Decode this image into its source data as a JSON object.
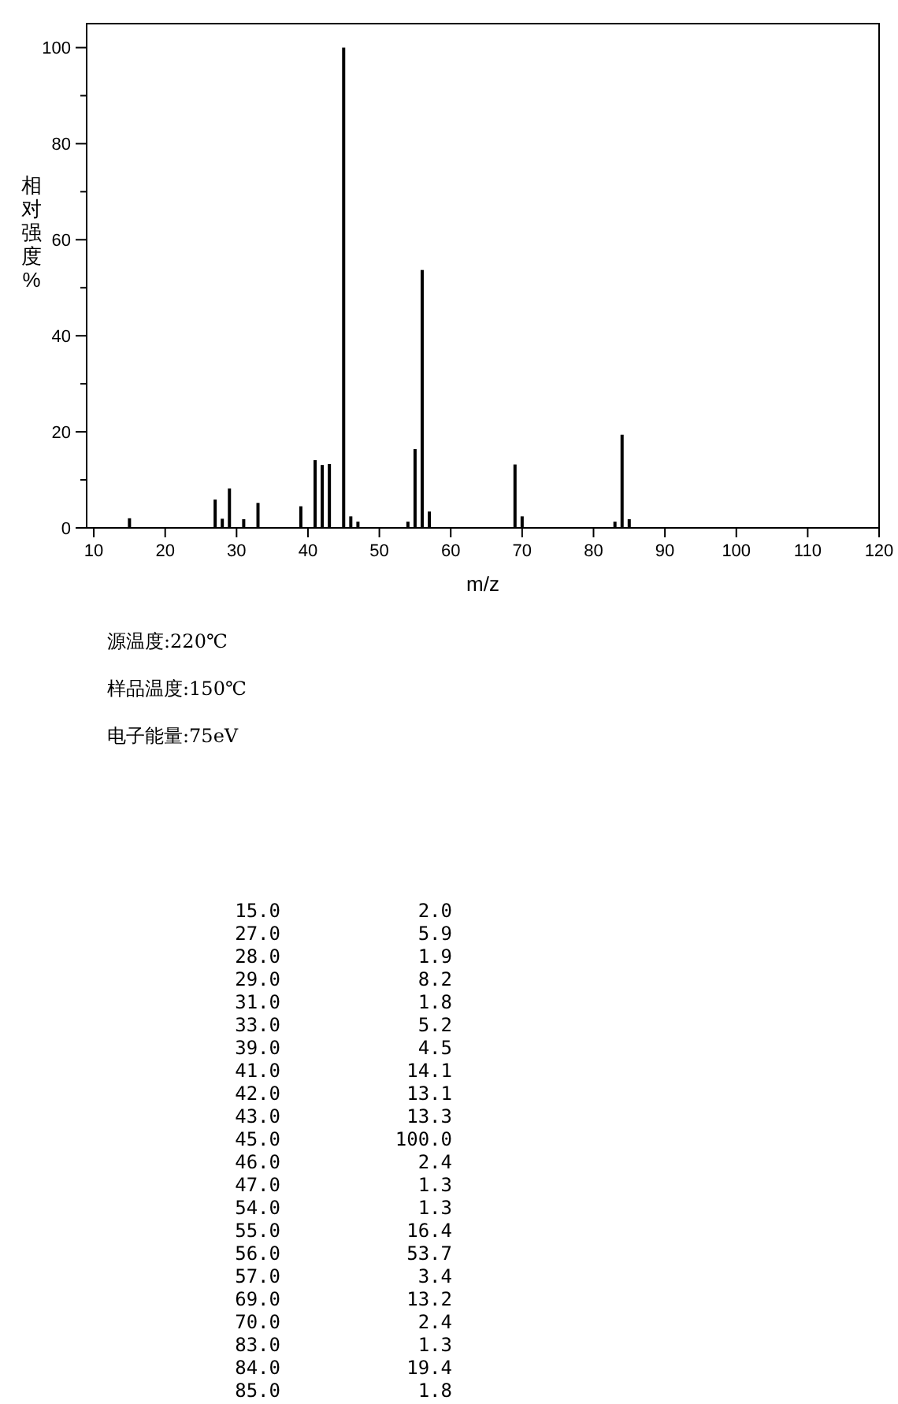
{
  "chart_data": {
    "type": "bar",
    "xlabel": "m/z",
    "ylabel": "相对强度%",
    "color": "#000000",
    "x": [
      15,
      27,
      28,
      29,
      31,
      33,
      39,
      41,
      42,
      43,
      45,
      46,
      47,
      54,
      55,
      56,
      57,
      69,
      70,
      83,
      84,
      85
    ],
    "values": [
      2.0,
      5.9,
      1.9,
      8.2,
      1.8,
      5.2,
      4.5,
      14.1,
      13.1,
      13.3,
      100.0,
      2.4,
      1.3,
      1.3,
      16.4,
      53.7,
      3.4,
      13.2,
      2.4,
      1.3,
      19.4,
      1.8
    ],
    "xlim": [
      9,
      120
    ],
    "ylim": [
      0,
      105
    ],
    "xticks": [
      10,
      20,
      30,
      40,
      50,
      60,
      70,
      80,
      90,
      100,
      110,
      120
    ],
    "yticks": [
      0,
      {
        "value": 10,
        "label": null
      },
      20,
      {
        "value": 30,
        "label": null
      },
      40,
      {
        "value": 50,
        "label": null
      },
      60,
      {
        "value": 70,
        "label": null
      },
      80,
      {
        "value": 90,
        "label": null
      },
      100
    ],
    "annotations": [
      "源温度:220℃",
      "样品温度:150℃",
      "电子能量:75eV",
      "15.0",
      "2.0",
      "27.0",
      "5.9",
      "28.0",
      "1.9",
      "29.0",
      "8.2",
      "31.0",
      "1.8",
      "33.0",
      "5.2",
      "39.0",
      "4.5",
      "41.0",
      "14.1",
      "42.0",
      "13.1",
      "43.0",
      "13.3",
      "45.0",
      "100.0",
      "46.0",
      "2.4",
      "47.0",
      "1.3",
      "54.0",
      "1.3",
      "55.0",
      "16.4",
      "56.0",
      "53.7",
      "57.0",
      "3.4",
      "69.0",
      "13.2",
      "70.0",
      "2.4",
      "83.0",
      "1.3",
      "84.0",
      "19.4",
      "85.0",
      "1.8"
    ]
  }
}
